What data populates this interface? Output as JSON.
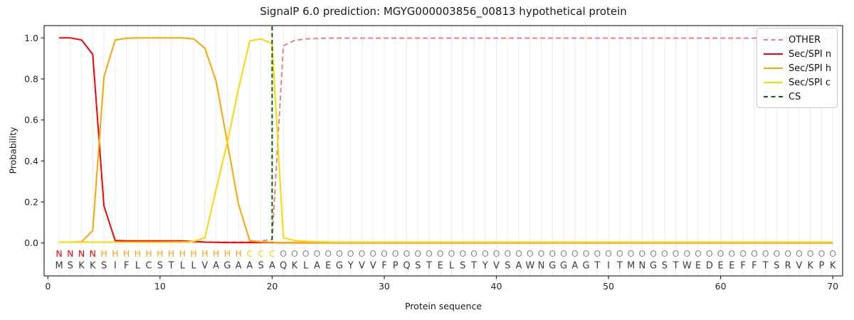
{
  "colors": {
    "other": "#f08080",
    "n": "#ff0000",
    "h": "#ffa500",
    "c": "#ffd700",
    "cs": "#0a640a",
    "grid": "#ebebeb",
    "frame": "#2b2b2b",
    "text": "#262626",
    "region_o": "#8c8c8c",
    "seq_text": "#3d3d3d"
  },
  "chart_data": {
    "type": "line",
    "title": "SignalP 6.0 prediction: MGYG000003856_00813 hypothetical protein",
    "xlabel": "Protein sequence",
    "ylabel": "Probability",
    "xticks": [
      0,
      10,
      20,
      30,
      40,
      50,
      60,
      70
    ],
    "yticks": [
      0,
      0.2,
      0.4,
      0.6,
      0.8,
      1.0
    ],
    "ytick_labels": [
      "0.0",
      "0.2",
      "0.4",
      "0.6",
      "0.8",
      "1.0"
    ],
    "xlim": [
      -0.33,
      70.9
    ],
    "ylim": [
      -0.16,
      1.06
    ],
    "x_start": 1,
    "grid": "vertical-per-residue",
    "legend_position": "upper right",
    "sequence": "MSKKSIFLCSTLLVAGAASAQKLAEGYVVFPQSTELSTYVSAWNGGAGTITMNGSTWEDEEFFTSRVKPK",
    "region_labels": "NNNNHHHHHHHHHHHHHCCCOOOOOOOOOOOOOOOOOOOOOOOOOOOOOOOOOOOOOOOOOOOOOOOOOO",
    "cs_position": 20,
    "series": [
      {
        "name": "OTHER",
        "color": "#f08080",
        "dashed": true,
        "values": [
          0.004,
          0.004,
          0.004,
          0.004,
          0.004,
          0.004,
          0.004,
          0.004,
          0.004,
          0.004,
          0.004,
          0.004,
          0.004,
          0.004,
          0.004,
          0.004,
          0.004,
          0.005,
          0.009,
          0.018,
          0.962,
          0.988,
          0.995,
          0.997,
          0.999,
          0.999,
          0.999,
          0.999,
          0.999,
          0.999,
          0.999,
          0.999,
          0.999,
          0.999,
          0.999,
          0.999,
          0.999,
          0.999,
          0.999,
          0.999,
          0.999,
          0.999,
          0.999,
          0.999,
          0.999,
          0.999,
          0.999,
          0.999,
          0.999,
          0.999,
          0.999,
          0.999,
          0.999,
          0.999,
          0.999,
          0.999,
          0.999,
          0.999,
          0.999,
          0.999,
          0.999,
          0.999,
          0.999,
          0.999,
          0.999,
          0.999,
          0.999,
          0.999,
          0.999,
          0.999
        ]
      },
      {
        "name": "Sec/SPI n",
        "color": "#ff0000",
        "dashed": false,
        "values": [
          1.0,
          1.0,
          0.99,
          0.92,
          0.18,
          0.012,
          0.01,
          0.01,
          0.01,
          0.01,
          0.01,
          0.01,
          0.008,
          0.004,
          0.003,
          0.002,
          0.002,
          0.002,
          0.002,
          0.002,
          0.001,
          0.001,
          0.001,
          0.001,
          0.001,
          0.001,
          0.001,
          0.001,
          0.001,
          0.001,
          0.001,
          0.001,
          0.001,
          0.001,
          0.001,
          0.001,
          0.001,
          0.001,
          0.001,
          0.001,
          0.001,
          0.001,
          0.001,
          0.001,
          0.001,
          0.001,
          0.001,
          0.001,
          0.001,
          0.001,
          0.001,
          0.001,
          0.001,
          0.001,
          0.001,
          0.001,
          0.001,
          0.001,
          0.001,
          0.001,
          0.001,
          0.001,
          0.001,
          0.001,
          0.001,
          0.001,
          0.001,
          0.001,
          0.001,
          0.001
        ]
      },
      {
        "name": "Sec/SPI h",
        "color": "#ffa500",
        "dashed": false,
        "values": [
          0.004,
          0.004,
          0.006,
          0.06,
          0.81,
          0.99,
          0.998,
          1.0,
          1.0,
          1.0,
          1.0,
          1.0,
          0.995,
          0.95,
          0.79,
          0.49,
          0.19,
          0.012,
          0.005,
          0.003,
          0.002,
          0.002,
          0.002,
          0.002,
          0.002,
          0.002,
          0.002,
          0.002,
          0.002,
          0.002,
          0.002,
          0.002,
          0.002,
          0.002,
          0.002,
          0.002,
          0.002,
          0.002,
          0.002,
          0.002,
          0.002,
          0.002,
          0.002,
          0.002,
          0.002,
          0.002,
          0.002,
          0.002,
          0.002,
          0.002,
          0.002,
          0.002,
          0.002,
          0.002,
          0.002,
          0.002,
          0.002,
          0.002,
          0.002,
          0.002,
          0.002,
          0.002,
          0.002,
          0.002,
          0.002,
          0.002,
          0.002,
          0.002,
          0.002,
          0.002
        ]
      },
      {
        "name": "Sec/SPI c",
        "color": "#ffd700",
        "dashed": false,
        "values": [
          0.004,
          0.004,
          0.004,
          0.004,
          0.004,
          0.004,
          0.004,
          0.004,
          0.004,
          0.004,
          0.005,
          0.005,
          0.008,
          0.025,
          0.26,
          0.49,
          0.75,
          0.985,
          0.995,
          0.973,
          0.025,
          0.012,
          0.008,
          0.006,
          0.005,
          0.004,
          0.004,
          0.004,
          0.004,
          0.004,
          0.004,
          0.004,
          0.004,
          0.004,
          0.004,
          0.004,
          0.004,
          0.004,
          0.004,
          0.004,
          0.004,
          0.004,
          0.004,
          0.004,
          0.004,
          0.004,
          0.004,
          0.004,
          0.004,
          0.004,
          0.004,
          0.004,
          0.004,
          0.004,
          0.004,
          0.004,
          0.004,
          0.004,
          0.004,
          0.004,
          0.004,
          0.004,
          0.004,
          0.004,
          0.004,
          0.004,
          0.004,
          0.004,
          0.004,
          0.004
        ]
      }
    ],
    "legend_items": [
      {
        "label": "OTHER",
        "color": "#f08080",
        "dashed": true
      },
      {
        "label": "Sec/SPI n",
        "color": "#ff0000",
        "dashed": false
      },
      {
        "label": "Sec/SPI h",
        "color": "#ffa500",
        "dashed": false
      },
      {
        "label": "Sec/SPI c",
        "color": "#ffd700",
        "dashed": false
      },
      {
        "label": "CS",
        "color": "#0a640a",
        "dashed": true
      }
    ]
  }
}
